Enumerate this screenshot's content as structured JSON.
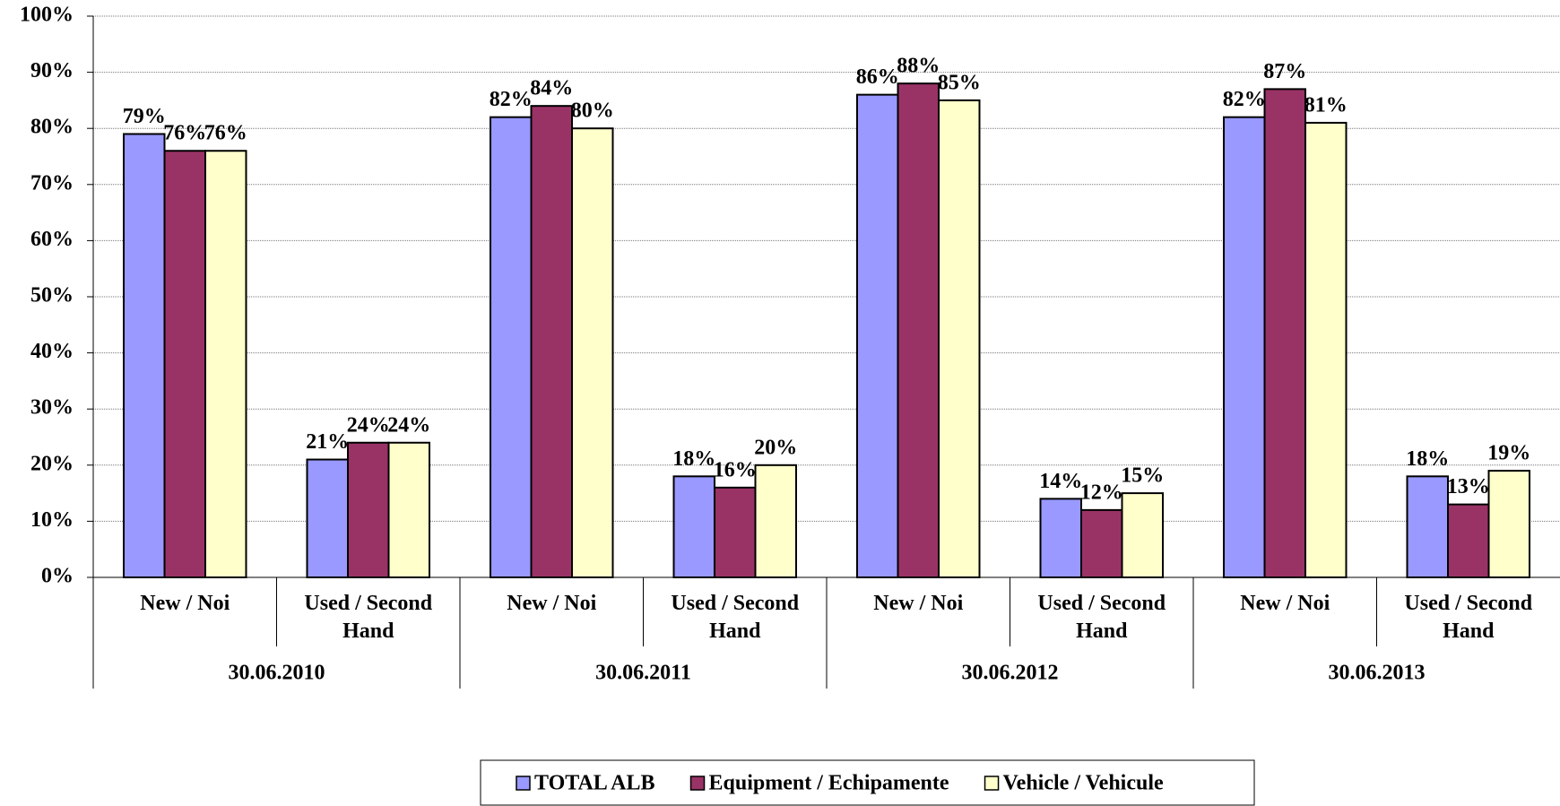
{
  "chart_data": {
    "type": "bar",
    "categories": [
      "New / Noi",
      "Used / Second Hand",
      "New / Noi",
      "Used / Second Hand",
      "New / Noi",
      "Used / Second Hand",
      "New / Noi",
      "Used / Second Hand"
    ],
    "groups": [
      "30.06.2010",
      "30.06.2011",
      "30.06.2012",
      "30.06.2013"
    ],
    "series": [
      {
        "name": "TOTAL ALB",
        "color": "#9999FF",
        "values": [
          79,
          21,
          82,
          18,
          86,
          14,
          82,
          18
        ],
        "value_labels": [
          "79%",
          "21%",
          "82%",
          "18%",
          "86%",
          "14%",
          "82%",
          "18%"
        ]
      },
      {
        "name": "Equipment / Echipamente",
        "color": "#993366",
        "values": [
          76,
          24,
          84,
          16,
          88,
          12,
          87,
          13
        ],
        "value_labels": [
          "76%",
          "24%",
          "84%",
          "16%",
          "88%",
          "12%",
          "87%",
          "13%"
        ]
      },
      {
        "name": "Vehicle / Vehicule",
        "color": "#FFFFCC",
        "values": [
          76,
          24,
          80,
          20,
          85,
          15,
          81,
          19
        ],
        "value_labels": [
          "76%",
          "24%",
          "80%",
          "20%",
          "85%",
          "15%",
          "81%",
          "19%"
        ]
      }
    ],
    "ylim": [
      0,
      100
    ],
    "yticks": [
      {
        "value": 0,
        "label": "0%"
      },
      {
        "value": 10,
        "label": "10%"
      },
      {
        "value": 20,
        "label": "20%"
      },
      {
        "value": 30,
        "label": "30%"
      },
      {
        "value": 40,
        "label": "40%"
      },
      {
        "value": 50,
        "label": "50%"
      },
      {
        "value": 60,
        "label": "60%"
      },
      {
        "value": 70,
        "label": "70%"
      },
      {
        "value": 80,
        "label": "80%"
      },
      {
        "value": 90,
        "label": "90%"
      },
      {
        "value": 100,
        "label": "100%"
      }
    ],
    "grid": true,
    "legend": "bottom"
  }
}
